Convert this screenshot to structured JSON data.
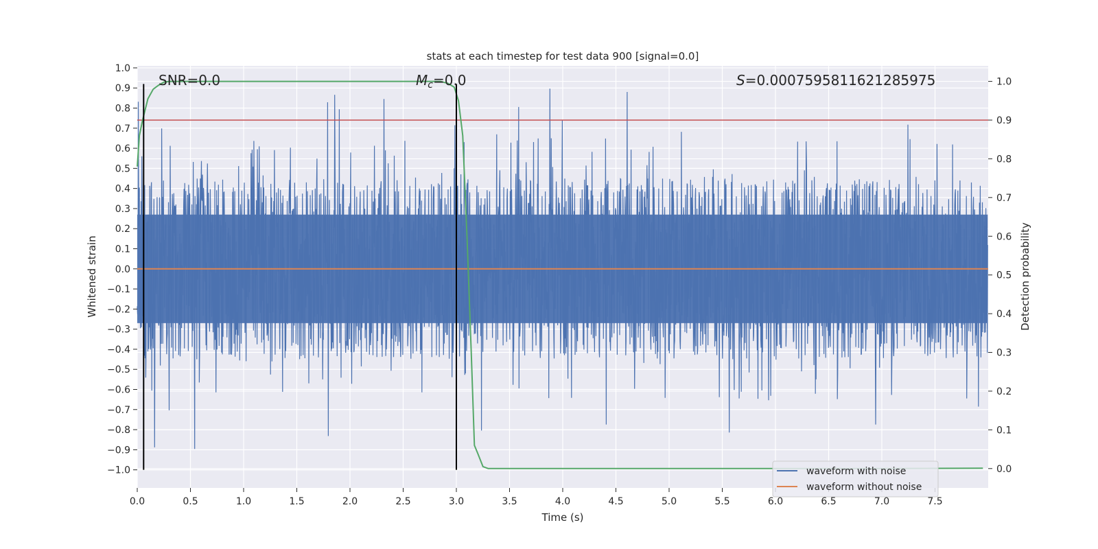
{
  "chart_data": {
    "type": "line",
    "title": "stats at each timestep for test data 900 [signal=0.0]",
    "xlabel": "Time (s)",
    "ylabel_left": "Whitened strain",
    "ylabel_right": "Detection probability",
    "xlim": [
      0.0,
      8.0
    ],
    "ylim_left": [
      -1.09,
      1.01
    ],
    "ylim_right": [
      -0.05,
      1.04
    ],
    "x_ticks": [
      "0.0",
      "0.5",
      "1.0",
      "1.5",
      "2.0",
      "2.5",
      "3.0",
      "3.5",
      "4.0",
      "4.5",
      "5.0",
      "5.5",
      "6.0",
      "6.5",
      "7.0",
      "7.5"
    ],
    "y_left_ticks": [
      "1.0",
      "0.9",
      "0.8",
      "0.7",
      "0.6",
      "0.5",
      "0.4",
      "0.3",
      "0.2",
      "0.1",
      "0.0",
      "-0.1",
      "-0.2",
      "-0.3",
      "-0.4",
      "-0.5",
      "-0.6",
      "-0.7",
      "-0.8",
      "-0.9",
      "-1.0"
    ],
    "y_right_ticks": [
      "1.0",
      "0.9",
      "0.8",
      "0.7",
      "0.6",
      "0.5",
      "0.4",
      "0.3",
      "0.2",
      "0.1",
      "0.0"
    ],
    "annotations": {
      "snr": "SNR=0.0",
      "mc_symbol": "M",
      "mc_sub": "c",
      "mc_value": "=0.0",
      "s_symbol": "S",
      "s_value": "=0.0007595811621285975"
    },
    "legend": {
      "placement": "lower-right",
      "entries": [
        "waveform with noise",
        "waveform without noise"
      ]
    },
    "series": [
      {
        "name": "waveform with noise",
        "color": "#4c72b0",
        "axis": "left",
        "description_type": "noise",
        "envelope_typical": 0.45,
        "peak_max": 0.92,
        "trough_min": -0.97
      },
      {
        "name": "waveform without noise",
        "color": "#dd8452",
        "axis": "left",
        "x": [
          0.0,
          8.0
        ],
        "y": [
          0.0,
          0.0
        ]
      },
      {
        "color": "#55a868",
        "axis": "right",
        "x": [
          0.0,
          0.02,
          0.05,
          0.1,
          0.15,
          0.2,
          0.25,
          0.3,
          0.35,
          0.4,
          0.6,
          1.0,
          2.0,
          2.75,
          2.85,
          2.92,
          2.98,
          3.02,
          3.06,
          3.1,
          3.14,
          3.17,
          3.2,
          3.25,
          3.3,
          3.5,
          5.0,
          7.0,
          7.95
        ],
        "y": [
          0.78,
          0.86,
          0.9,
          0.955,
          0.98,
          0.99,
          0.998,
          1.0,
          1.0,
          1.0,
          1.0,
          1.0,
          1.0,
          1.0,
          1.0,
          0.995,
          0.985,
          0.95,
          0.86,
          0.6,
          0.3,
          0.06,
          0.04,
          0.005,
          0.0,
          0.0,
          0.0,
          0.0,
          0.001
        ]
      }
    ],
    "vlines": [
      0.06,
      3.0
    ],
    "hline_right": 0.9,
    "hline_color": "#c44e52",
    "colors": {
      "background": "#eaeaf2",
      "grid": "#ffffff",
      "vline": "#000000"
    }
  }
}
